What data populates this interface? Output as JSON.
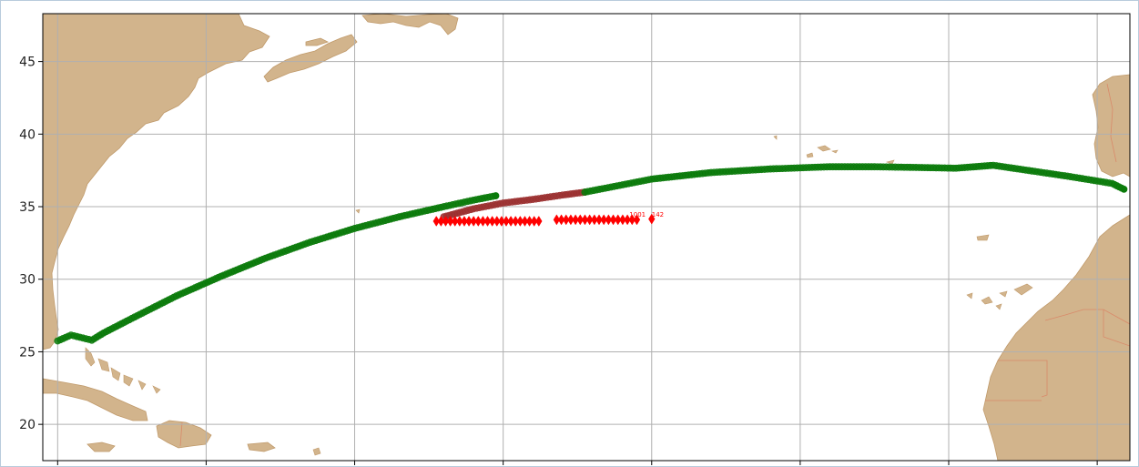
{
  "chart_data": {
    "type": "scatter",
    "title": "",
    "xlabel": "",
    "ylabel": "",
    "ylim": [
      17.5,
      48.3
    ],
    "xlim": [
      -81.0,
      -7.8
    ],
    "y_ticks": [
      20,
      25,
      30,
      35,
      40,
      45
    ],
    "y_tick_labels": [
      "20",
      "25",
      "30",
      "35",
      "40",
      "45"
    ],
    "x_ticks": [
      -80,
      -70,
      -60,
      -50,
      -40,
      -30,
      -20,
      -10
    ],
    "x_tick_labels": [
      "",
      "",
      "",
      "",
      "",
      "",
      "",
      ""
    ],
    "grid": true,
    "colors": {
      "land": "#d2b48c",
      "land_edge": "#c09a6b",
      "border": "#d98a6a",
      "grid": "#b0b0b0",
      "route": "#0a7a0a",
      "route_dark": "#9b3030",
      "obs": "#ff0000"
    },
    "series": [
      {
        "role": "route-green-west",
        "color": "#0a7a0a",
        "marker": "circle",
        "x": [
          -80.0,
          -79.1,
          -78.3,
          -77.7,
          -76.9,
          -75.0,
          -72.0,
          -69.0,
          -66.0,
          -63.0,
          -60.0,
          -57.0,
          -54.0,
          -52.0,
          -50.5
        ],
        "y": [
          25.75,
          26.15,
          25.95,
          25.8,
          26.3,
          27.3,
          28.85,
          30.2,
          31.45,
          32.55,
          33.5,
          34.3,
          35.0,
          35.45,
          35.75
        ]
      },
      {
        "role": "route-dark-mid",
        "color": "#9b3030",
        "marker": "circle",
        "x": [
          -54.0,
          -52.0,
          -50.0,
          -48.0,
          -46.0,
          -44.5
        ],
        "y": [
          34.3,
          34.85,
          35.25,
          35.5,
          35.8,
          36.0
        ]
      },
      {
        "role": "route-green-east",
        "color": "#0a7a0a",
        "marker": "circle",
        "x": [
          -44.5,
          -40.0,
          -36.0,
          -32.0,
          -28.0,
          -25.0,
          -22.0,
          -19.5,
          -17.0,
          -15.0,
          -12.0,
          -9.0,
          -8.2
        ],
        "y": [
          36.0,
          36.9,
          37.35,
          37.6,
          37.75,
          37.75,
          37.7,
          37.65,
          37.85,
          37.55,
          37.1,
          36.6,
          36.2
        ]
      },
      {
        "role": "observations",
        "color": "#ff0000",
        "marker": "diamond",
        "groups": [
          {
            "x_start": -54.5,
            "x_end": -47.6,
            "y": 34.0
          },
          {
            "x_start": -46.4,
            "x_end": -41.0,
            "y": 34.1
          }
        ],
        "outlier": {
          "x": -40.0,
          "y": 34.15
        }
      }
    ],
    "annotations": [
      {
        "text": "1001",
        "x": -41.5,
        "y": 34.25
      },
      {
        "text": "142",
        "x": -40.0,
        "y": 34.25
      }
    ]
  }
}
